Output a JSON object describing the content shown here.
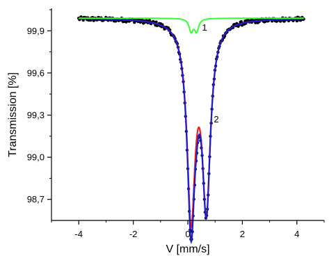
{
  "chart_data": {
    "type": "scatter",
    "xlabel": "V [mm/s]",
    "ylabel": "Transmission [%]",
    "xlim": [
      -5,
      5
    ],
    "ylim": [
      98.55,
      100.06
    ],
    "x_ticks": [
      -4,
      -2,
      0,
      2,
      4
    ],
    "x_tick_labels": [
      "-4",
      "-2",
      "0",
      "2",
      "4"
    ],
    "y_ticks": [
      98.7,
      99.0,
      99.3,
      99.6,
      99.9
    ],
    "y_tick_labels": [
      "98,7",
      "99,0",
      "99,3",
      "99,6",
      "99,9"
    ],
    "grid": false,
    "legend": "none",
    "baseline": 99.99,
    "points_x_range": [
      -4.0,
      4.25
    ],
    "points_count": 300,
    "annotations": [
      {
        "text": "1",
        "x": 0.55,
        "y": 99.96
      },
      {
        "text": "2",
        "x": 0.62,
        "y": 99.24
      }
    ],
    "series": [
      {
        "kind": "experimental-points",
        "color": "#000000"
      },
      {
        "label": "1",
        "kind": "component-doublet",
        "color": "#33ff33",
        "centers": [
          0.12,
          0.32
        ],
        "depths": [
          0.09,
          0.09
        ],
        "hwhm": 0.09
      },
      {
        "label": "2",
        "kind": "component-doublet",
        "color": "#e8231f",
        "centers": [
          0.12,
          0.68
        ],
        "depths": [
          1.365,
          1.29
        ],
        "hwhm": 0.18
      },
      {
        "kind": "total-fit",
        "color": "#1c1cd6"
      }
    ]
  }
}
